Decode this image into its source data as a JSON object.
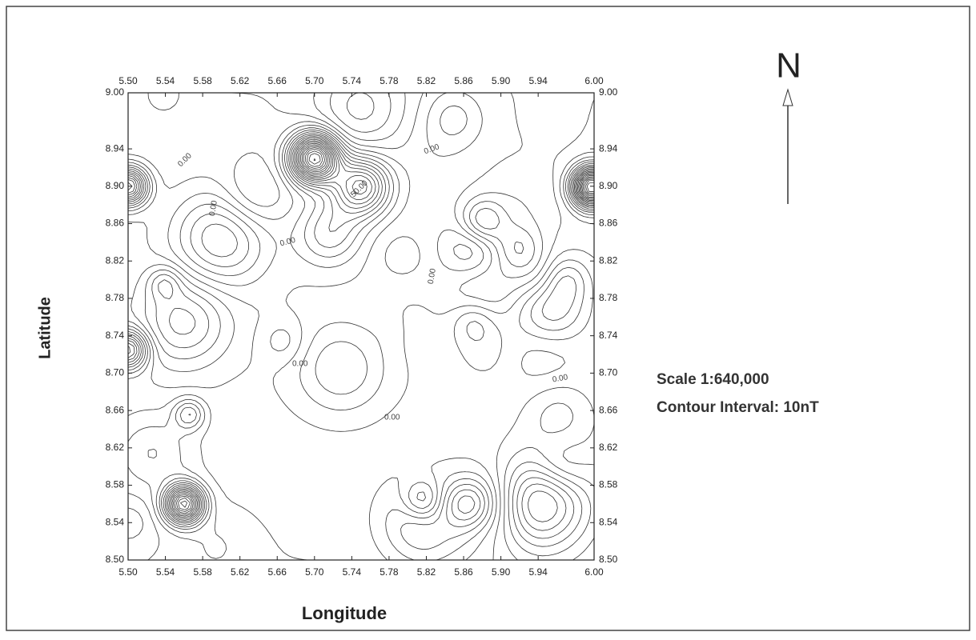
{
  "chart_data": {
    "type": "contour",
    "title": "N",
    "x_label": "Longitude",
    "y_label": "Latitude",
    "annotations": [
      "Scale 1:640,000",
      "Contour Interval: 10nT"
    ],
    "xlim": [
      5.5,
      6.0
    ],
    "ylim": [
      8.5,
      9.0
    ],
    "xticks": [
      {
        "value": 5.5,
        "label": "5.50"
      },
      {
        "value": 5.54,
        "label": "5.54"
      },
      {
        "value": 5.58,
        "label": "5.58"
      },
      {
        "value": 5.62,
        "label": "5.62"
      },
      {
        "value": 5.66,
        "label": "5.66"
      },
      {
        "value": 5.7,
        "label": "5.70"
      },
      {
        "value": 5.74,
        "label": "5.74"
      },
      {
        "value": 5.78,
        "label": "5.78"
      },
      {
        "value": 5.82,
        "label": "5.82"
      },
      {
        "value": 5.86,
        "label": "5.86"
      },
      {
        "value": 5.9,
        "label": "5.90"
      },
      {
        "value": 5.94,
        "label": "5.94"
      },
      {
        "value": 6.0,
        "label": "6.00"
      }
    ],
    "yticks": [
      {
        "value": 9.0,
        "label": "9.00"
      },
      {
        "value": 8.94,
        "label": "8.94"
      },
      {
        "value": 8.9,
        "label": "8.90"
      },
      {
        "value": 8.86,
        "label": "8.86"
      },
      {
        "value": 8.82,
        "label": "8.82"
      },
      {
        "value": 8.78,
        "label": "8.78"
      },
      {
        "value": 8.74,
        "label": "8.74"
      },
      {
        "value": 8.7,
        "label": "8.70"
      },
      {
        "value": 8.66,
        "label": "8.66"
      },
      {
        "value": 8.62,
        "label": "8.62"
      },
      {
        "value": 8.58,
        "label": "8.58"
      },
      {
        "value": 8.54,
        "label": "8.54"
      },
      {
        "value": 8.5,
        "label": "8.50"
      }
    ],
    "contour_labels": [
      {
        "value": 0,
        "label": "0.00"
      },
      {
        "value": 50,
        "label": "50.00"
      },
      {
        "value": 0,
        "label": "0.00"
      },
      {
        "value": 0,
        "label": "0.00"
      },
      {
        "value": 0,
        "label": "0.00"
      },
      {
        "value": 0,
        "label": "0.00"
      },
      {
        "value": 0,
        "label": "0.00"
      },
      {
        "value": 0,
        "label": "0.00"
      },
      {
        "value": 0,
        "label": "0.00"
      }
    ],
    "color": "#333333"
  }
}
